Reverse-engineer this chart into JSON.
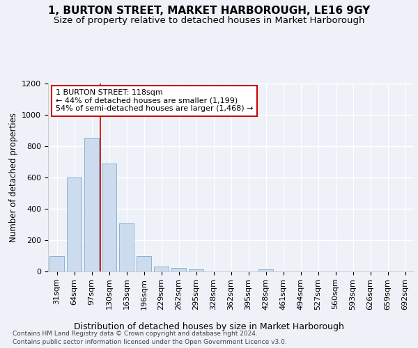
{
  "title": "1, BURTON STREET, MARKET HARBOROUGH, LE16 9GY",
  "subtitle": "Size of property relative to detached houses in Market Harborough",
  "xlabel": "Distribution of detached houses by size in Market Harborough",
  "ylabel": "Number of detached properties",
  "categories": [
    "31sqm",
    "64sqm",
    "97sqm",
    "130sqm",
    "163sqm",
    "196sqm",
    "229sqm",
    "262sqm",
    "295sqm",
    "328sqm",
    "362sqm",
    "395sqm",
    "428sqm",
    "461sqm",
    "494sqm",
    "527sqm",
    "560sqm",
    "593sqm",
    "626sqm",
    "659sqm",
    "692sqm"
  ],
  "values": [
    100,
    600,
    855,
    690,
    305,
    100,
    32,
    22,
    12,
    0,
    0,
    0,
    15,
    0,
    0,
    0,
    0,
    0,
    0,
    0,
    0
  ],
  "bar_color": "#ccdcee",
  "bar_edge_color": "#7aabcc",
  "ylim": [
    0,
    1200
  ],
  "yticks": [
    0,
    200,
    400,
    600,
    800,
    1000,
    1200
  ],
  "vline_color": "#cc0000",
  "annotation_text": "1 BURTON STREET: 118sqm\n← 44% of detached houses are smaller (1,199)\n54% of semi-detached houses are larger (1,468) →",
  "annotation_box_color": "#cc0000",
  "footer1": "Contains HM Land Registry data © Crown copyright and database right 2024.",
  "footer2": "Contains public sector information licensed under the Open Government Licence v3.0.",
  "background_color": "#eef2f8",
  "grid_color": "#ffffff",
  "title_fontsize": 11,
  "subtitle_fontsize": 9.5,
  "xlabel_fontsize": 9,
  "ylabel_fontsize": 8.5,
  "tick_fontsize": 8,
  "footer_fontsize": 6.5
}
